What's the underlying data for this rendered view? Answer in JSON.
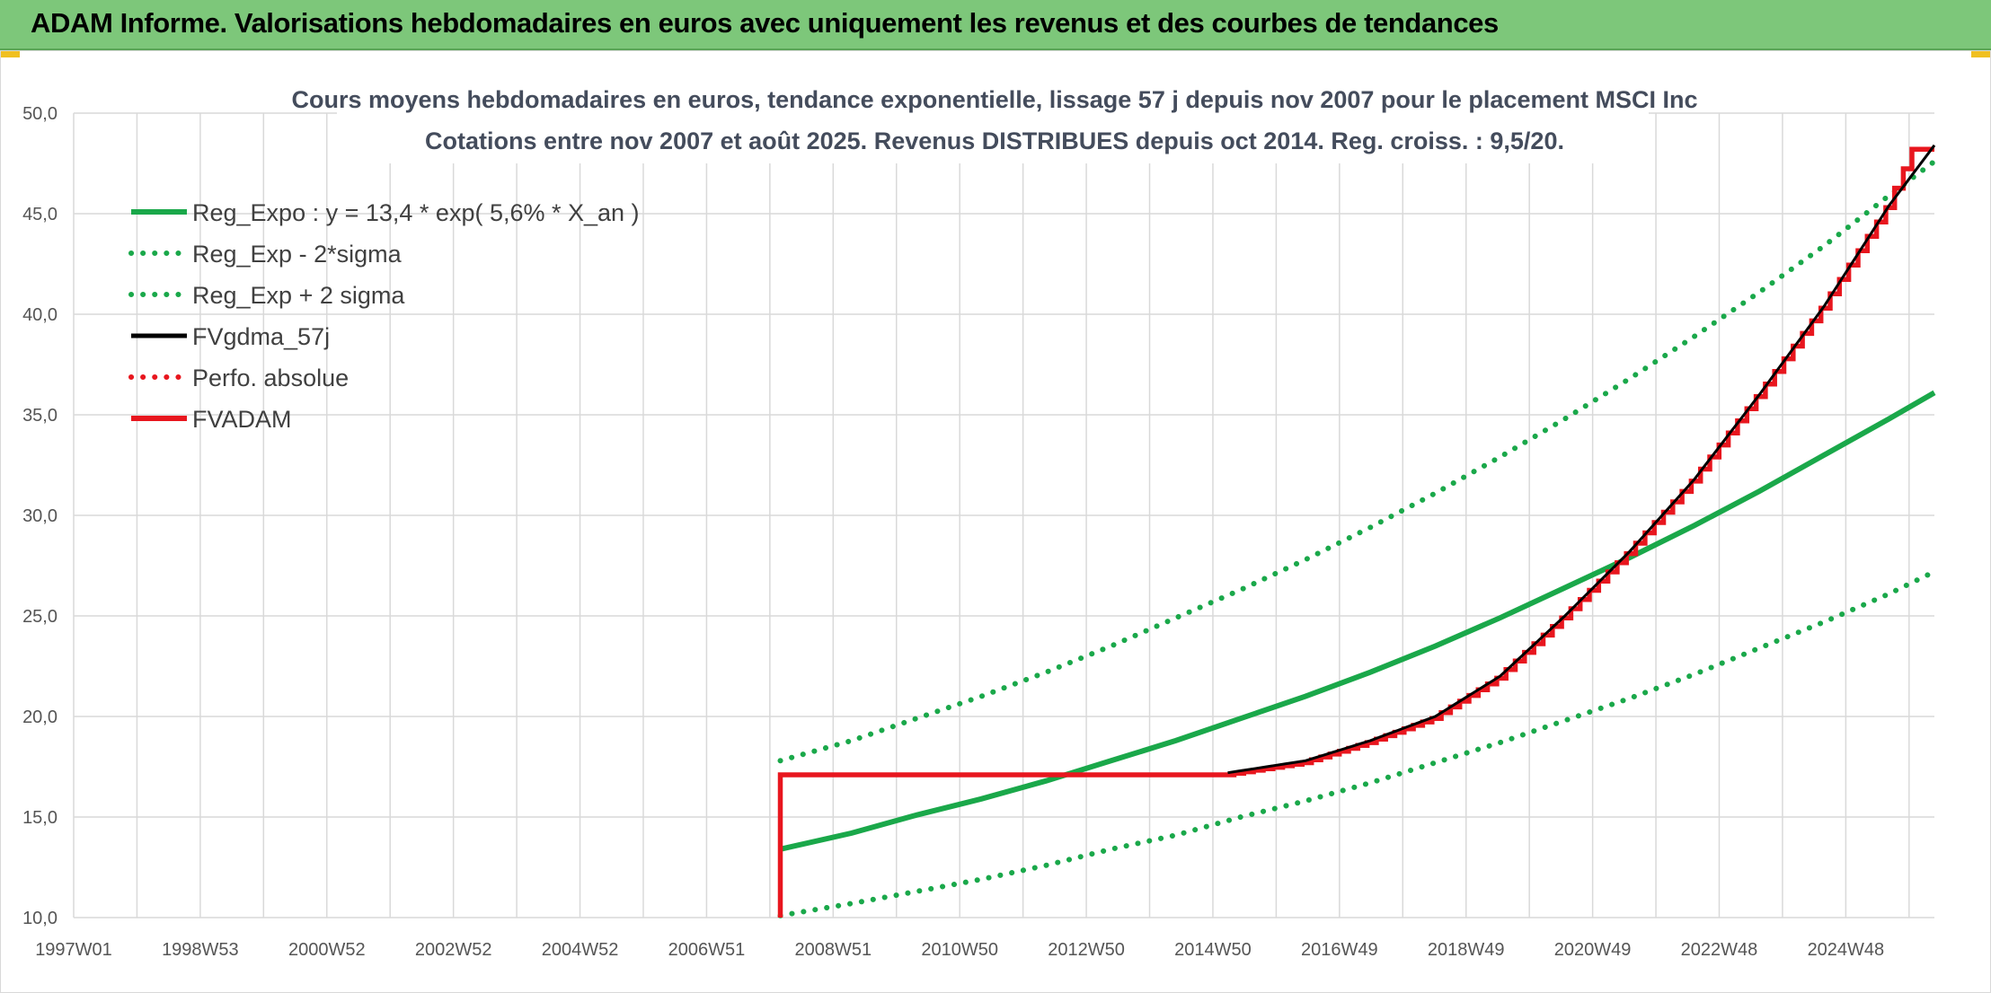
{
  "header": {
    "title": "ADAM Informe. Valorisations hebdomadaires en euros avec uniquement les revenus et des courbes de tendances"
  },
  "chart_data": {
    "type": "line",
    "title": "Cours moyens hebdomadaires en euros, tendance exponentielle, lissage 57 j depuis nov 2007 pour le placement MSCI Inc",
    "subtitle": "Cotations entre nov 2007 et août 2025. Revenus DISTRIBUES depuis oct 2014. Reg. croiss. : 9,5/20.",
    "xlabel": "",
    "ylabel": "",
    "x_ticks": [
      "1997W01",
      "1998W53",
      "2000W52",
      "2002W52",
      "2004W52",
      "2006W51",
      "2008W51",
      "2010W50",
      "2012W50",
      "2014W50",
      "2016W49",
      "2018W49",
      "2020W49",
      "2022W48",
      "2024W48"
    ],
    "xlim": [
      1997.0,
      2025.7
    ],
    "ylim": [
      10,
      50
    ],
    "y_ticks": [
      "10,0",
      "15,0",
      "20,0",
      "25,0",
      "30,0",
      "35,0",
      "40,0",
      "45,0",
      "50,0"
    ],
    "grid": true,
    "legend_position": "top-left",
    "series": [
      {
        "name": "Reg_Expo : y = 13,4 * exp( 5,6% *  X_an )",
        "color": "#1aa84a",
        "style": "solid",
        "points": [
          [
            2007.9,
            13.4
          ],
          [
            2009.0,
            14.2
          ],
          [
            2010.0,
            15.1
          ],
          [
            2011.0,
            15.9
          ],
          [
            2012.0,
            16.8
          ],
          [
            2013.0,
            17.8
          ],
          [
            2014.0,
            18.8
          ],
          [
            2015.0,
            19.9
          ],
          [
            2016.0,
            21.0
          ],
          [
            2017.0,
            22.2
          ],
          [
            2018.0,
            23.5
          ],
          [
            2019.0,
            24.9
          ],
          [
            2020.0,
            26.4
          ],
          [
            2021.0,
            27.9
          ],
          [
            2022.0,
            29.5
          ],
          [
            2023.0,
            31.2
          ],
          [
            2024.0,
            33.0
          ],
          [
            2025.0,
            34.8
          ],
          [
            2025.7,
            36.1
          ]
        ]
      },
      {
        "name": "Reg_Exp - 2*sigma",
        "color": "#1aa84a",
        "style": "dotted",
        "points": [
          [
            2007.9,
            10.1
          ],
          [
            2009.0,
            10.7
          ],
          [
            2010.0,
            11.3
          ],
          [
            2011.0,
            11.9
          ],
          [
            2012.0,
            12.6
          ],
          [
            2013.0,
            13.4
          ],
          [
            2014.0,
            14.1
          ],
          [
            2015.0,
            15.0
          ],
          [
            2016.0,
            15.8
          ],
          [
            2017.0,
            16.7
          ],
          [
            2018.0,
            17.7
          ],
          [
            2019.0,
            18.7
          ],
          [
            2020.0,
            19.8
          ],
          [
            2021.0,
            20.9
          ],
          [
            2022.0,
            22.1
          ],
          [
            2023.0,
            23.4
          ],
          [
            2024.0,
            24.7
          ],
          [
            2025.0,
            26.1
          ],
          [
            2025.7,
            27.2
          ]
        ]
      },
      {
        "name": "Reg_Exp + 2 sigma",
        "color": "#1aa84a",
        "style": "dotted",
        "points": [
          [
            2007.9,
            17.8
          ],
          [
            2009.0,
            18.8
          ],
          [
            2010.0,
            19.9
          ],
          [
            2011.0,
            21.0
          ],
          [
            2012.0,
            22.2
          ],
          [
            2013.0,
            23.5
          ],
          [
            2014.0,
            24.9
          ],
          [
            2015.0,
            26.3
          ],
          [
            2016.0,
            27.8
          ],
          [
            2017.0,
            29.4
          ],
          [
            2018.0,
            31.1
          ],
          [
            2019.0,
            32.9
          ],
          [
            2020.0,
            34.8
          ],
          [
            2021.0,
            36.8
          ],
          [
            2022.0,
            38.9
          ],
          [
            2023.0,
            41.1
          ],
          [
            2024.0,
            43.4
          ],
          [
            2025.0,
            45.9
          ],
          [
            2025.7,
            47.6
          ]
        ]
      },
      {
        "name": "FVgdma_57j",
        "color": "#000000",
        "style": "solid",
        "points": [
          [
            2014.8,
            17.2
          ],
          [
            2016.0,
            17.8
          ],
          [
            2017.0,
            18.8
          ],
          [
            2018.0,
            20.0
          ],
          [
            2019.0,
            22.0
          ],
          [
            2020.0,
            25.0
          ],
          [
            2021.0,
            28.2
          ],
          [
            2022.0,
            31.8
          ],
          [
            2023.0,
            36.0
          ],
          [
            2024.0,
            40.4
          ],
          [
            2025.0,
            45.4
          ],
          [
            2025.7,
            48.4
          ]
        ]
      },
      {
        "name": "Perfo. absolue",
        "color": "#e8161e",
        "style": "dotted",
        "points": []
      },
      {
        "name": "FVADAM",
        "color": "#e8161e",
        "style": "solid",
        "points": [
          [
            2007.9,
            10.0
          ],
          [
            2007.9,
            17.1
          ],
          [
            2014.8,
            17.1
          ],
          [
            2016.0,
            17.7
          ],
          [
            2017.0,
            18.7
          ],
          [
            2018.0,
            19.9
          ],
          [
            2019.0,
            21.9
          ],
          [
            2020.0,
            24.9
          ],
          [
            2021.0,
            28.1
          ],
          [
            2022.0,
            31.7
          ],
          [
            2023.0,
            35.9
          ],
          [
            2024.0,
            40.3
          ],
          [
            2025.0,
            45.3
          ],
          [
            2025.4,
            48.2
          ],
          [
            2025.7,
            48.2
          ]
        ]
      }
    ]
  }
}
